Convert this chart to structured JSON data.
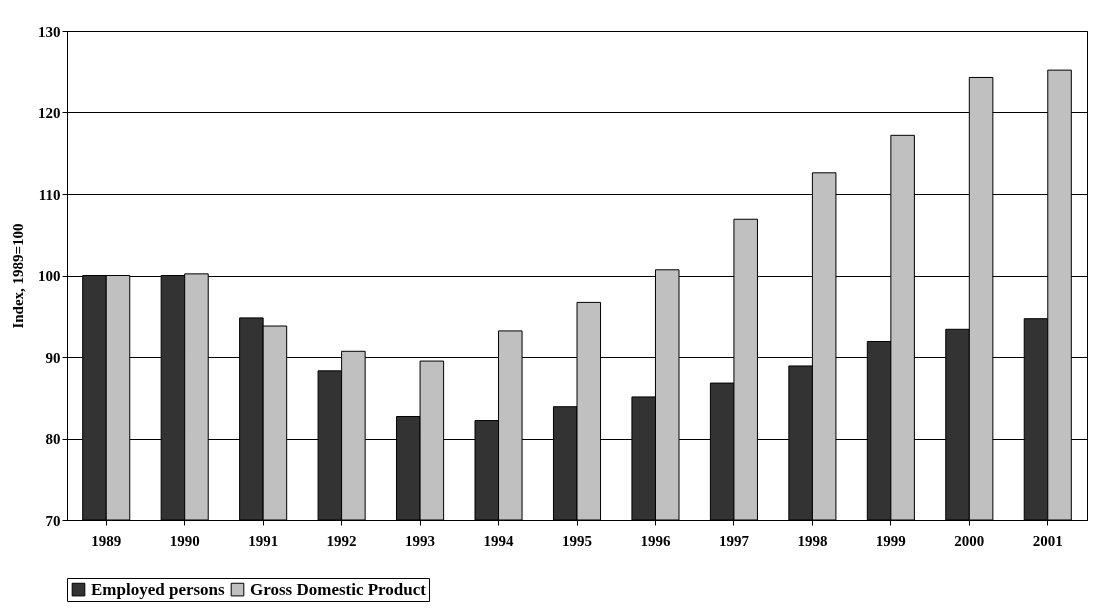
{
  "chart_data": {
    "type": "bar",
    "ylabel": "Index, 1989=100",
    "categories": [
      "1989",
      "1990",
      "1991",
      "1992",
      "1993",
      "1994",
      "1995",
      "1996",
      "1997",
      "1998",
      "1999",
      "2000",
      "2001"
    ],
    "series": [
      {
        "name": "Employed persons",
        "color": "#333333",
        "values": [
          100,
          100,
          94.8,
          88.3,
          82.7,
          82.2,
          83.9,
          85.1,
          86.8,
          88.9,
          91.9,
          93.4,
          94.7
        ]
      },
      {
        "name": "Gross Domestic Product",
        "color": "#c0c0c0",
        "values": [
          100,
          100.2,
          93.8,
          90.7,
          89.5,
          93.2,
          96.7,
          100.7,
          106.9,
          112.6,
          117.2,
          124.3,
          125.2
        ]
      }
    ],
    "ylim": [
      70,
      130
    ],
    "yticks": [
      70,
      80,
      90,
      100,
      110,
      120,
      130
    ],
    "grid": "y",
    "legend": "bottom"
  }
}
